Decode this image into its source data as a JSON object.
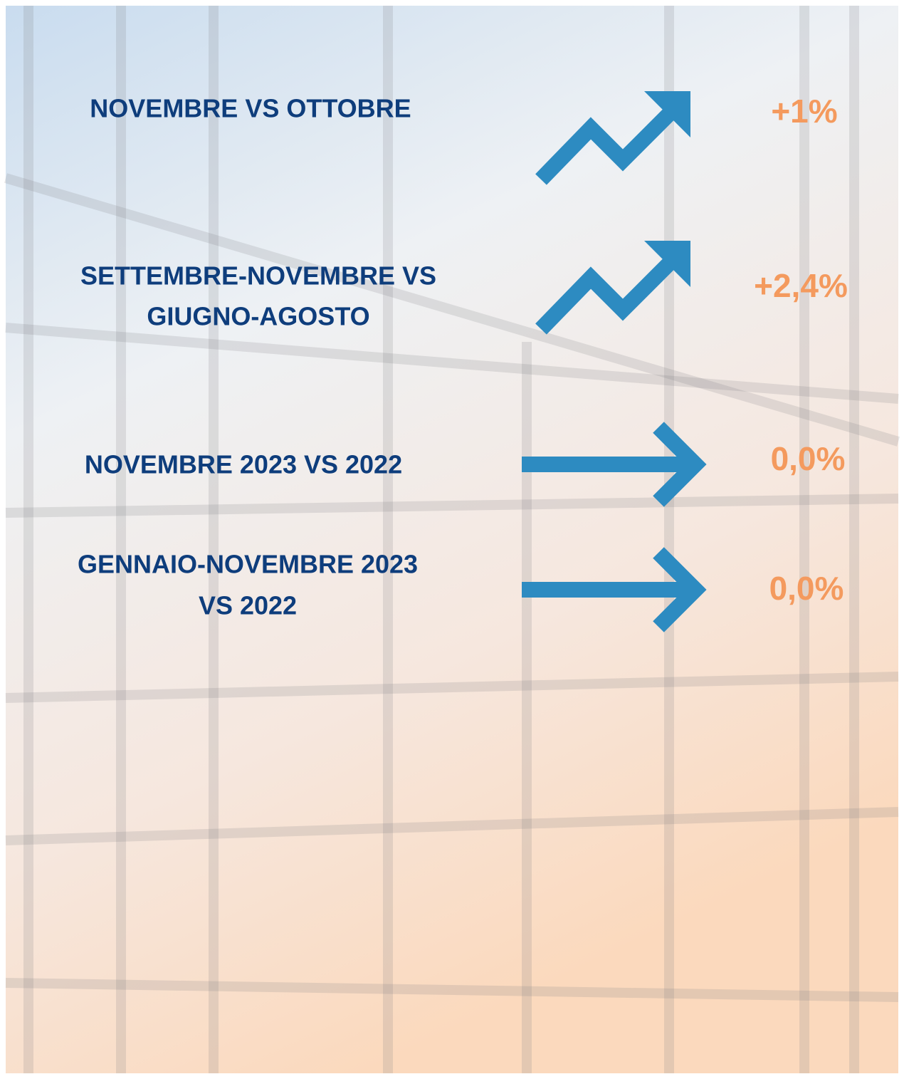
{
  "rows": [
    {
      "label": [
        "NOVEMBRE VS OTTOBRE"
      ],
      "value": "+1%"
    },
    {
      "label": [
        "SETTEMBRE-NOVEMBRE VS",
        "GIUGNO-AGOSTO"
      ],
      "value": "+2,4%"
    },
    {
      "label": [
        "NOVEMBRE 2023 VS 2022"
      ],
      "value": "0,0%"
    },
    {
      "label": [
        "GENNAIO-NOVEMBRE 2023",
        "VS 2022"
      ],
      "value": "0,0%"
    }
  ]
}
